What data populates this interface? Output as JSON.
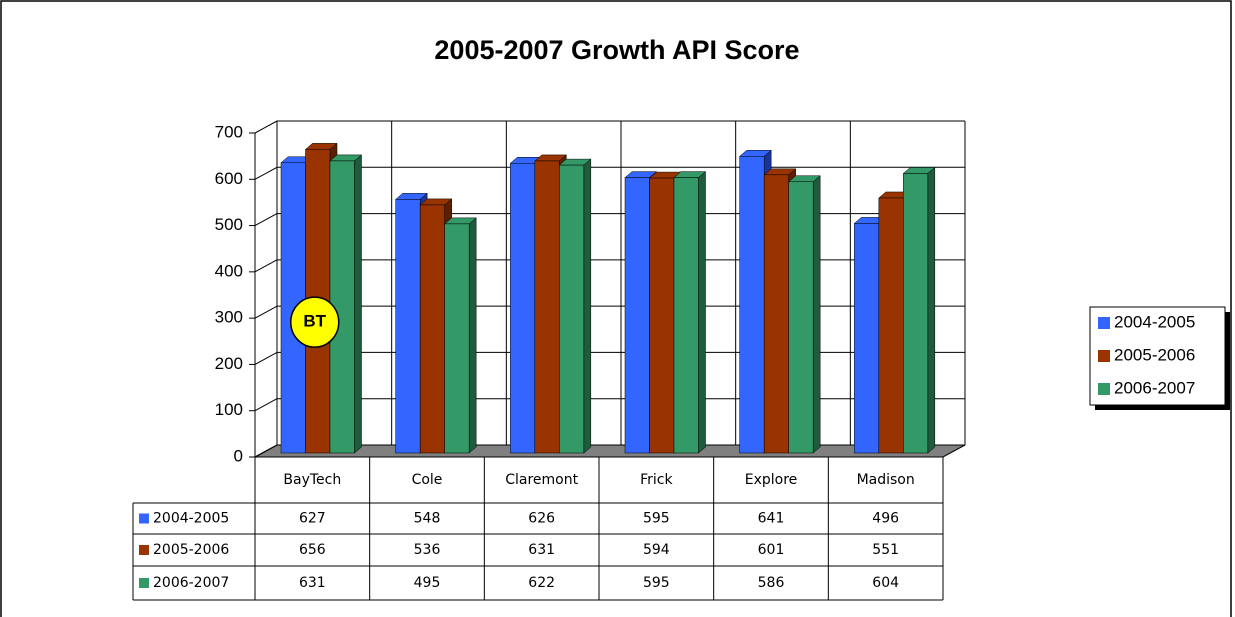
{
  "chart_data": {
    "type": "bar",
    "title": "2005-2007 Growth API Score",
    "categories": [
      "BayTech",
      "Cole",
      "Claremont",
      "Frick",
      "Explore",
      "Madison"
    ],
    "series": [
      {
        "name": "2004-2005",
        "color": "#3366ff",
        "values": [
          627,
          548,
          626,
          595,
          641,
          496
        ]
      },
      {
        "name": "2005-2006",
        "color": "#993300",
        "values": [
          656,
          536,
          631,
          594,
          601,
          551
        ]
      },
      {
        "name": "2006-2007",
        "color": "#339966",
        "values": [
          631,
          495,
          622,
          595,
          586,
          604
        ]
      }
    ],
    "ylim": [
      0,
      700
    ],
    "yticks": [
      0,
      100,
      200,
      300,
      400,
      500,
      600,
      700
    ],
    "grid": true,
    "legend": "right",
    "annotations": [
      {
        "text": "BT",
        "category": 0,
        "value": 300
      }
    ]
  }
}
